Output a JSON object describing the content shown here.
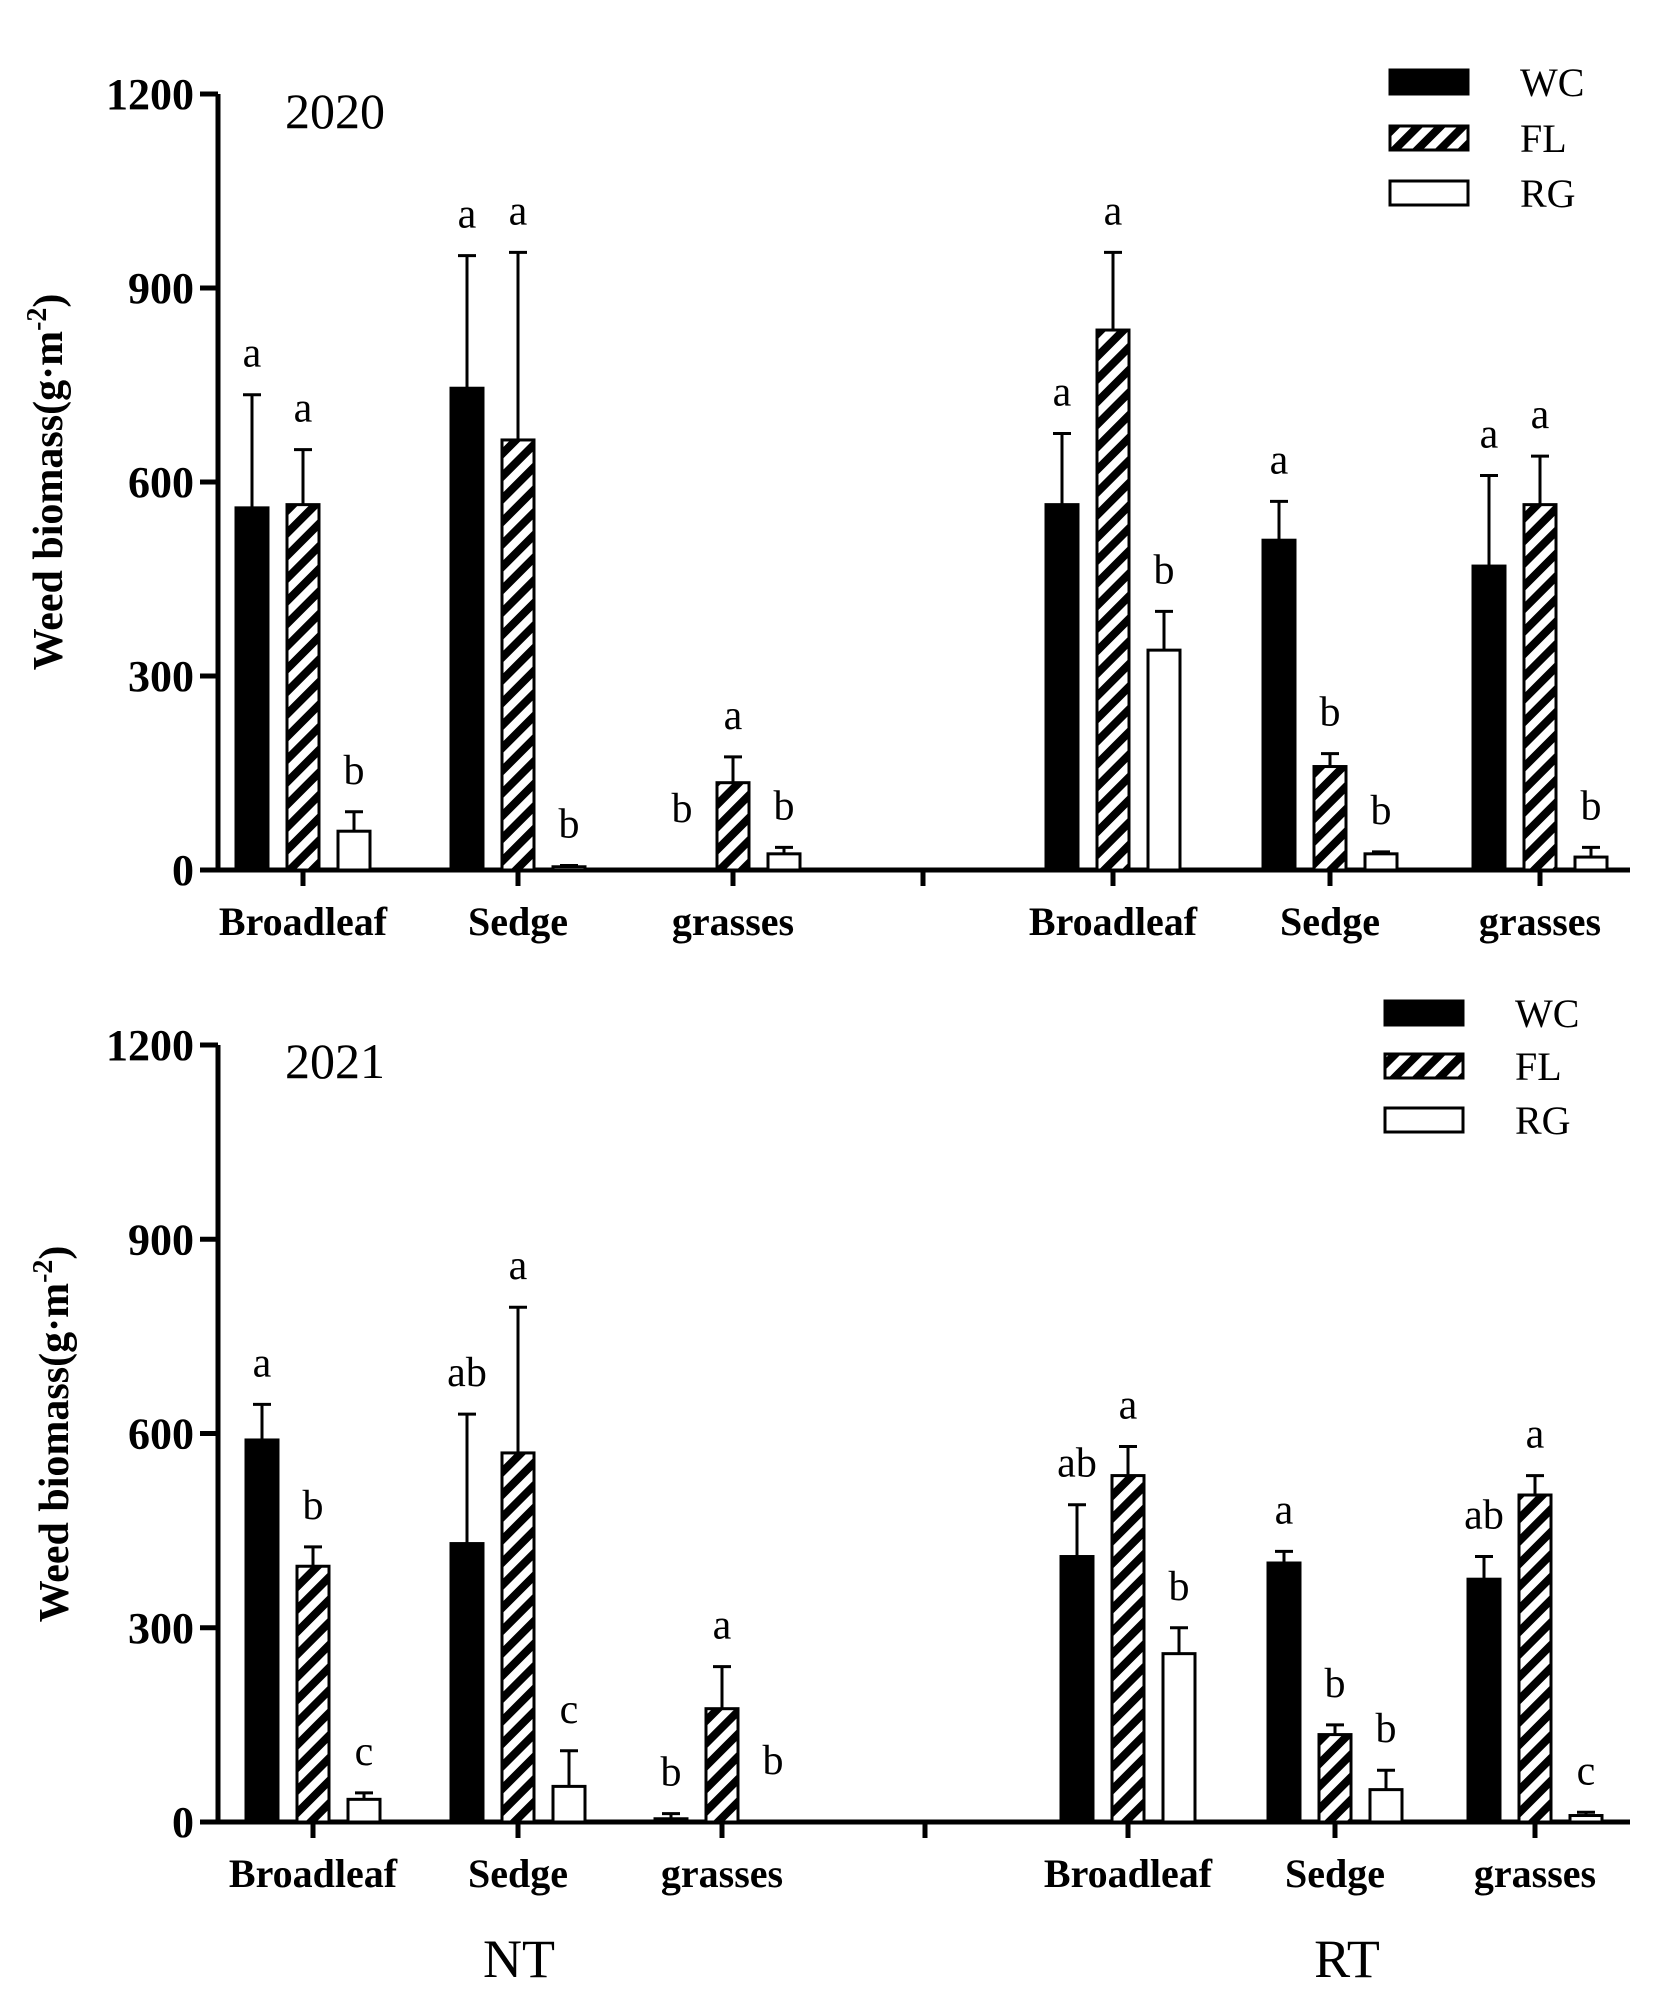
{
  "colors": {
    "wc": "#000000",
    "rg": "#ffffff",
    "axis": "#000000"
  },
  "tillage_labels": [
    "NT",
    "RT"
  ],
  "chart_data": [
    {
      "type": "bar",
      "title": "2020",
      "ylabel": "Weed biomass(g·m-2)",
      "ylabel_main": "Weed biomass(g·m",
      "ylabel_exp": "-2",
      "ylabel_close": ")",
      "ylim": [
        0,
        1200
      ],
      "yticks": [
        0,
        300,
        600,
        900,
        1200
      ],
      "categories": [
        "Broadleaf",
        "Sedge",
        "grasses",
        "Broadleaf",
        "Sedge",
        "grasses"
      ],
      "groups": [
        {
          "name": "NT",
          "category_index": [
            0,
            1,
            2
          ]
        },
        {
          "name": "RT",
          "category_index": [
            3,
            4,
            5
          ]
        }
      ],
      "series": [
        {
          "name": "WC",
          "values": [
            560,
            745,
            0,
            565,
            510,
            470
          ],
          "errors": [
            175,
            205,
            0,
            110,
            60,
            140
          ],
          "letters": [
            "a",
            "a",
            "b",
            "a",
            "a",
            "a"
          ]
        },
        {
          "name": "FL",
          "values": [
            565,
            665,
            135,
            835,
            160,
            565
          ],
          "errors": [
            85,
            290,
            40,
            120,
            20,
            75
          ],
          "letters": [
            "a",
            "a",
            "a",
            "a",
            "b",
            "a"
          ]
        },
        {
          "name": "RG",
          "values": [
            60,
            5,
            25,
            340,
            25,
            20
          ],
          "errors": [
            30,
            2,
            10,
            60,
            3,
            15
          ],
          "letters": [
            "b",
            "b",
            "b",
            "b",
            "b",
            "b"
          ]
        }
      ],
      "legend": [
        "WC",
        "FL",
        "RG"
      ],
      "legend_position": "top-right"
    },
    {
      "type": "bar",
      "title": "2021",
      "ylabel": "Weed biomass(g·m-2)",
      "ylabel_main": "Weed biomass(g·m",
      "ylabel_exp": "-2",
      "ylabel_close": ")",
      "ylim": [
        0,
        1200
      ],
      "yticks": [
        0,
        300,
        600,
        900,
        1200
      ],
      "categories": [
        "Broadleaf",
        "Sedge",
        "grasses",
        "Broadleaf",
        "Sedge",
        "grasses"
      ],
      "groups": [
        {
          "name": "NT",
          "category_index": [
            0,
            1,
            2
          ]
        },
        {
          "name": "RT",
          "category_index": [
            3,
            4,
            5
          ]
        }
      ],
      "series": [
        {
          "name": "WC",
          "values": [
            590,
            430,
            5,
            410,
            400,
            375
          ],
          "errors": [
            55,
            200,
            8,
            80,
            18,
            35
          ],
          "letters": [
            "a",
            "ab",
            "b",
            "ab",
            "a",
            "ab"
          ]
        },
        {
          "name": "FL",
          "values": [
            395,
            570,
            175,
            535,
            135,
            505
          ],
          "errors": [
            30,
            225,
            65,
            45,
            15,
            30
          ],
          "letters": [
            "b",
            "a",
            "a",
            "a",
            "b",
            "a"
          ]
        },
        {
          "name": "RG",
          "values": [
            35,
            55,
            0,
            260,
            50,
            10
          ],
          "errors": [
            10,
            55,
            0,
            40,
            30,
            5
          ],
          "letters": [
            "c",
            "c",
            "b",
            "b",
            "b",
            "c"
          ]
        }
      ],
      "legend": [
        "WC",
        "FL",
        "RG"
      ],
      "legend_position": "top-right"
    }
  ]
}
